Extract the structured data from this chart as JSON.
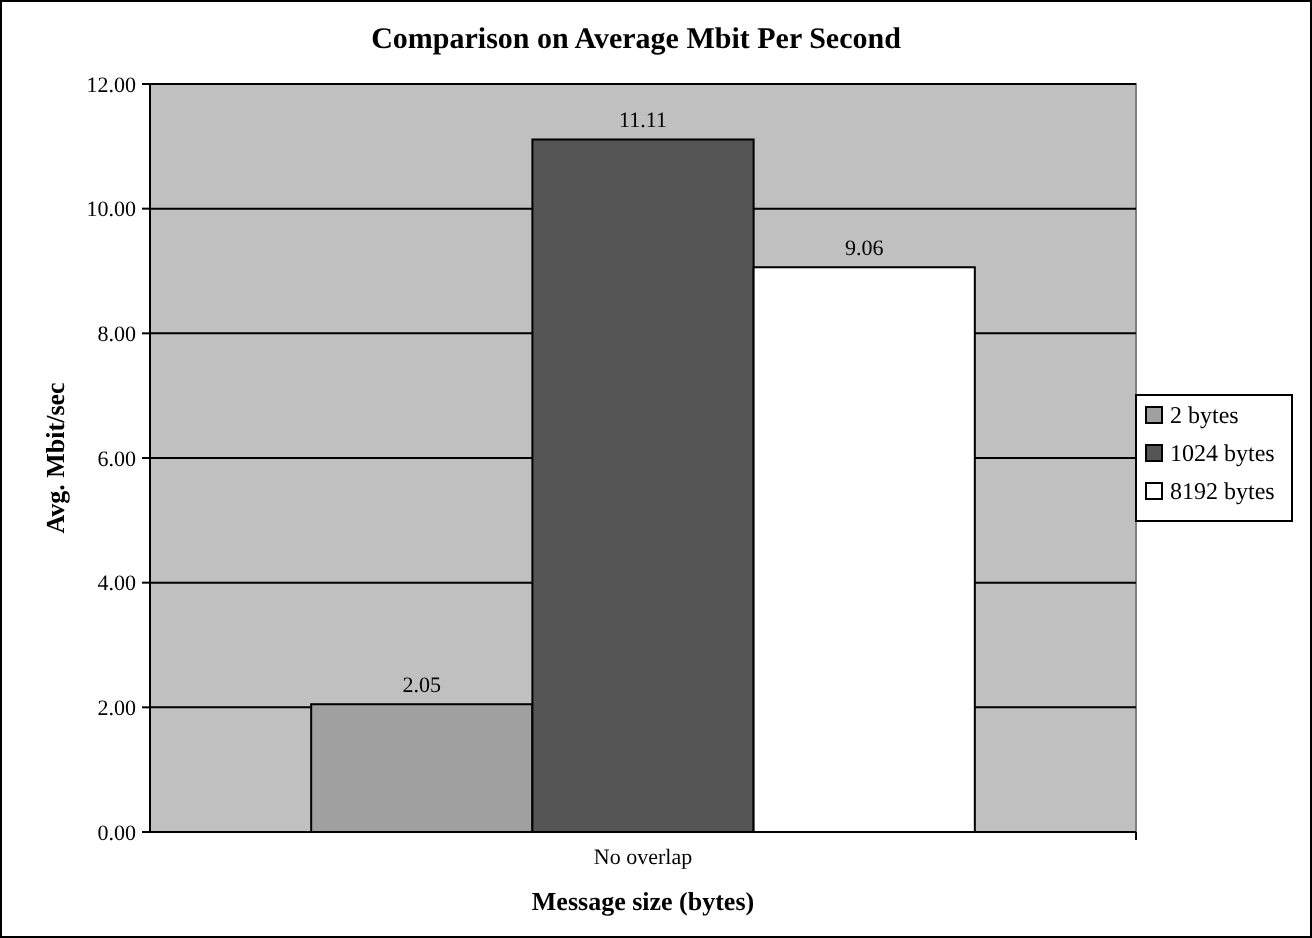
{
  "chart_data": {
    "type": "bar",
    "title": "Comparison on Average Mbit Per Second",
    "xlabel": "Message size (bytes)",
    "ylabel": "Avg. Mbit/sec",
    "categories": [
      "No overlap"
    ],
    "series": [
      {
        "name": "2 bytes",
        "color": "#a0a0a0",
        "values": [
          2.05
        ]
      },
      {
        "name": "1024 bytes",
        "color": "#555555",
        "values": [
          11.11
        ]
      },
      {
        "name": "8192 bytes",
        "color": "#ffffff",
        "values": [
          9.06
        ]
      }
    ],
    "ylim": [
      0,
      12
    ],
    "yticks": [
      {
        "value": 0,
        "label": "0.00"
      },
      {
        "value": 2,
        "label": "2.00"
      },
      {
        "value": 4,
        "label": "4.00"
      },
      {
        "value": 6,
        "label": "6.00"
      },
      {
        "value": 8,
        "label": "8.00"
      },
      {
        "value": 10,
        "label": "10.00"
      },
      {
        "value": 12,
        "label": "12.00"
      }
    ],
    "grid": "y",
    "legend": "right",
    "data_labels": true
  }
}
